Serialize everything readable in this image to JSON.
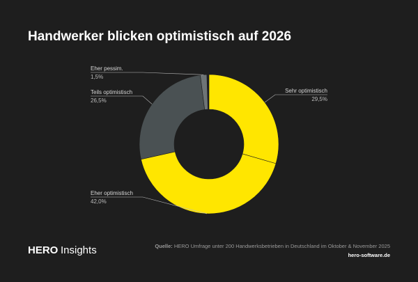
{
  "chart_data": {
    "type": "donut",
    "title": "Handwerker blicken optimistisch auf 2026",
    "categories": [
      "Sehr optimistisch",
      "Eher optimistisch",
      "Teils optimistisch",
      "Eher pessim."
    ],
    "values": [
      29.5,
      42.0,
      26.5,
      1.5
    ],
    "value_labels": [
      "29,5%",
      "42,0%",
      "26,5%",
      "1,5%"
    ],
    "colors": [
      "#ffe600",
      "#ffe600",
      "#4a5153",
      "#6e7476"
    ]
  },
  "footer": {
    "brand": "HERO",
    "brand_suffix": "Insights",
    "source_label": "Quelle:",
    "source_text": "HERO Umfrage unter 200 Handwerksbetrieben in Deutschland im Oktober & November 2025",
    "website": "hero-software.de"
  }
}
